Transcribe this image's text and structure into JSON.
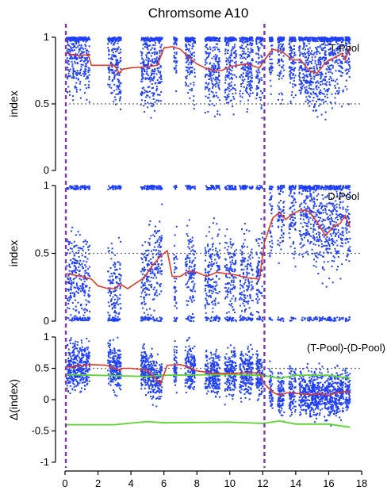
{
  "chart_data": {
    "type": "scatter",
    "title": "Chromsome A10",
    "x_ticks": [
      "0",
      "2",
      "4",
      "6",
      "8",
      "10",
      "12",
      "14",
      "16",
      "18"
    ],
    "xlim": [
      0,
      18
    ],
    "grid": false,
    "colors": {
      "points": "#1f3fff",
      "trend": "#e03c2a",
      "confidence": "#5cd62e",
      "marker": "#7a3aa8",
      "reference": "#666666"
    },
    "marker_lines_x": [
      0.05,
      12.1
    ],
    "panels": [
      {
        "label": "T-Pool",
        "ylabel": "index",
        "ylim": [
          0,
          1
        ],
        "y_ticks": [
          "0",
          "0.5",
          "1"
        ],
        "reference_line": 0.5,
        "trend": [
          [
            0.1,
            0.88
          ],
          [
            0.8,
            0.86
          ],
          [
            1.4,
            0.87
          ],
          [
            1.6,
            0.79
          ],
          [
            2.5,
            0.79
          ],
          [
            3.0,
            0.79
          ],
          [
            3.3,
            0.73
          ],
          [
            3.5,
            0.76
          ],
          [
            4.0,
            0.77
          ],
          [
            5.0,
            0.78
          ],
          [
            5.6,
            0.79
          ],
          [
            6.0,
            0.92
          ],
          [
            6.5,
            0.93
          ],
          [
            7.0,
            0.91
          ],
          [
            7.5,
            0.85
          ],
          [
            8.0,
            0.8
          ],
          [
            8.5,
            0.77
          ],
          [
            9.0,
            0.75
          ],
          [
            9.5,
            0.75
          ],
          [
            10.0,
            0.78
          ],
          [
            11.0,
            0.8
          ],
          [
            11.8,
            0.77
          ],
          [
            12.1,
            0.83
          ],
          [
            12.6,
            0.91
          ],
          [
            13.2,
            0.89
          ],
          [
            13.8,
            0.83
          ],
          [
            14.3,
            0.83
          ],
          [
            14.8,
            0.75
          ],
          [
            15.3,
            0.73
          ],
          [
            15.8,
            0.81
          ],
          [
            16.4,
            0.85
          ],
          [
            16.8,
            0.88
          ],
          [
            17.0,
            0.83
          ],
          [
            17.3,
            0.93
          ]
        ],
        "trend_extras": []
      },
      {
        "label": "D-Pool",
        "ylabel": "index",
        "ylim": [
          0,
          1
        ],
        "y_ticks": [
          "0",
          "0.5",
          "1"
        ],
        "reference_line": 0.5,
        "trend": [
          [
            0.1,
            0.35
          ],
          [
            1.0,
            0.33
          ],
          [
            1.6,
            0.31
          ],
          [
            2.0,
            0.26
          ],
          [
            2.6,
            0.24
          ],
          [
            3.0,
            0.24
          ],
          [
            3.4,
            0.27
          ],
          [
            3.8,
            0.24
          ],
          [
            4.3,
            0.28
          ],
          [
            4.8,
            0.32
          ],
          [
            5.3,
            0.41
          ],
          [
            5.8,
            0.48
          ],
          [
            6.2,
            0.52
          ],
          [
            6.5,
            0.33
          ],
          [
            7.0,
            0.33
          ],
          [
            7.5,
            0.37
          ],
          [
            8.0,
            0.36
          ],
          [
            8.6,
            0.33
          ],
          [
            9.2,
            0.36
          ],
          [
            9.8,
            0.35
          ],
          [
            10.4,
            0.34
          ],
          [
            11.0,
            0.32
          ],
          [
            11.8,
            0.31
          ],
          [
            12.1,
            0.58
          ],
          [
            12.6,
            0.76
          ],
          [
            13.0,
            0.8
          ],
          [
            13.4,
            0.75
          ],
          [
            13.8,
            0.79
          ],
          [
            14.3,
            0.82
          ],
          [
            14.8,
            0.81
          ],
          [
            15.3,
            0.73
          ],
          [
            15.8,
            0.63
          ],
          [
            16.3,
            0.7
          ],
          [
            16.7,
            0.72
          ],
          [
            17.0,
            0.78
          ],
          [
            17.3,
            0.69
          ]
        ],
        "trend_extras": []
      },
      {
        "label": "(T-Pool)-(D-Pool)",
        "ylabel": "Δ(index)",
        "ylim": [
          -1,
          1
        ],
        "y_ticks": [
          "-1",
          "-0.5",
          "0",
          "0.5",
          "1"
        ],
        "reference_line": 0.5,
        "trend": [
          [
            0.1,
            0.52
          ],
          [
            1.0,
            0.54
          ],
          [
            1.6,
            0.56
          ],
          [
            2.5,
            0.55
          ],
          [
            3.3,
            0.47
          ],
          [
            3.5,
            0.5
          ],
          [
            4.0,
            0.5
          ],
          [
            5.0,
            0.47
          ],
          [
            5.4,
            0.36
          ],
          [
            5.8,
            0.25
          ],
          [
            6.2,
            0.55
          ],
          [
            7.0,
            0.56
          ],
          [
            7.5,
            0.52
          ],
          [
            8.0,
            0.46
          ],
          [
            9.0,
            0.42
          ],
          [
            10.0,
            0.42
          ],
          [
            11.0,
            0.43
          ],
          [
            11.8,
            0.43
          ],
          [
            12.1,
            0.25
          ],
          [
            12.6,
            0.12
          ],
          [
            13.0,
            0.07
          ],
          [
            13.5,
            0.11
          ],
          [
            14.0,
            0.1
          ],
          [
            15.0,
            0.08
          ],
          [
            15.5,
            0.1
          ],
          [
            16.0,
            0.07
          ],
          [
            16.5,
            0.11
          ],
          [
            17.0,
            0.13
          ],
          [
            17.3,
            0.12
          ]
        ],
        "trend_extras": [
          [
            [
              0.1,
              0.4
            ],
            [
              5.0,
              0.37
            ],
            [
              6.0,
              0.39
            ],
            [
              10.0,
              0.4
            ],
            [
              12.0,
              0.39
            ],
            [
              13.0,
              0.34
            ],
            [
              14.0,
              0.39
            ],
            [
              16.0,
              0.39
            ],
            [
              17.3,
              0.34
            ]
          ],
          [
            [
              0.1,
              -0.4
            ],
            [
              3.0,
              -0.4
            ],
            [
              5.0,
              -0.35
            ],
            [
              6.0,
              -0.37
            ],
            [
              10.0,
              -0.36
            ],
            [
              12.0,
              -0.38
            ],
            [
              13.0,
              -0.34
            ],
            [
              14.0,
              -0.39
            ],
            [
              16.0,
              -0.39
            ],
            [
              17.3,
              -0.44
            ]
          ]
        ]
      }
    ]
  }
}
